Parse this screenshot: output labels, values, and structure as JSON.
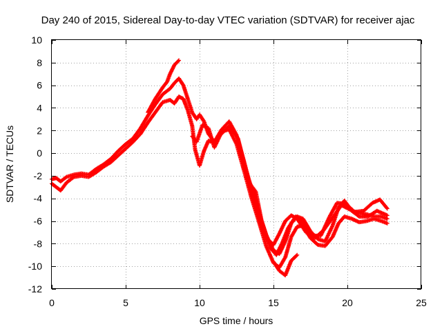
{
  "chart_data": {
    "type": "scatter",
    "title": "Day 240 of 2015, Sidereal Day-to-day VTEC variation (SDTVAR) for receiver ajac",
    "xlabel": "GPS time / hours",
    "ylabel": "SDTVAR / TECUs",
    "xlim": [
      0,
      25
    ],
    "ylim": [
      -12,
      10
    ],
    "xticks": [
      0,
      5,
      10,
      15,
      20,
      25
    ],
    "yticks": [
      -12,
      -10,
      -8,
      -6,
      -4,
      -2,
      0,
      2,
      4,
      6,
      8,
      10
    ],
    "grid": true,
    "marker": "+",
    "color": "#ff0000",
    "series": [
      {
        "values": [
          [
            0.0,
            -2.3
          ],
          [
            0.3,
            -2.2
          ],
          [
            0.6,
            -2.5
          ],
          [
            1.0,
            -2.1
          ],
          [
            1.5,
            -1.9
          ],
          [
            2.0,
            -1.8
          ],
          [
            2.5,
            -1.9
          ],
          [
            3.0,
            -1.4
          ],
          [
            3.5,
            -1.0
          ],
          [
            4.0,
            -0.5
          ],
          [
            4.5,
            0.2
          ],
          [
            5.0,
            0.8
          ],
          [
            5.5,
            1.3
          ],
          [
            6.0,
            2.2
          ],
          [
            6.5,
            3.3
          ],
          [
            7.0,
            4.3
          ],
          [
            7.5,
            5.2
          ],
          [
            8.0,
            5.7
          ],
          [
            8.3,
            6.2
          ],
          [
            8.6,
            6.6
          ],
          [
            8.9,
            6.0
          ],
          [
            9.2,
            4.8
          ],
          [
            9.5,
            3.6
          ],
          [
            9.8,
            3.0
          ],
          [
            10.0,
            3.4
          ],
          [
            10.3,
            2.8
          ],
          [
            10.6,
            1.7
          ],
          [
            11.0,
            1.0
          ],
          [
            11.5,
            2.1
          ],
          [
            12.0,
            2.8
          ],
          [
            12.5,
            1.6
          ],
          [
            13.0,
            -0.7
          ],
          [
            13.5,
            -3.2
          ],
          [
            14.0,
            -5.2
          ],
          [
            14.5,
            -7.2
          ],
          [
            15.0,
            -8.6
          ],
          [
            15.4,
            -8.9
          ],
          [
            15.8,
            -7.8
          ],
          [
            16.2,
            -6.2
          ],
          [
            16.6,
            -5.6
          ],
          [
            17.0,
            -5.8
          ],
          [
            17.5,
            -6.9
          ],
          [
            18.0,
            -7.6
          ],
          [
            18.5,
            -7.8
          ],
          [
            19.0,
            -6.4
          ],
          [
            19.4,
            -4.8
          ],
          [
            19.8,
            -4.2
          ],
          [
            20.3,
            -5.1
          ],
          [
            20.8,
            -5.3
          ],
          [
            21.3,
            -5.4
          ],
          [
            21.8,
            -5.6
          ],
          [
            22.3,
            -5.6
          ],
          [
            22.7,
            -5.8
          ]
        ]
      },
      {
        "values": [
          [
            0.0,
            -2.7
          ],
          [
            0.3,
            -3.0
          ],
          [
            0.6,
            -3.3
          ],
          [
            1.0,
            -2.6
          ],
          [
            1.5,
            -2.1
          ],
          [
            2.0,
            -2.0
          ],
          [
            2.5,
            -2.1
          ],
          [
            3.0,
            -1.7
          ],
          [
            3.5,
            -1.2
          ],
          [
            4.0,
            -0.8
          ],
          [
            4.5,
            -0.2
          ],
          [
            5.0,
            0.4
          ],
          [
            5.5,
            1.0
          ],
          [
            6.0,
            1.7
          ],
          [
            6.5,
            2.7
          ],
          [
            7.0,
            3.6
          ],
          [
            7.5,
            4.5
          ],
          [
            8.0,
            4.7
          ],
          [
            8.3,
            4.4
          ],
          [
            8.6,
            5.0
          ],
          [
            8.9,
            4.8
          ],
          [
            9.2,
            3.8
          ],
          [
            9.5,
            2.4
          ],
          [
            9.7,
            0.3
          ],
          [
            10.0,
            -1.1
          ],
          [
            10.3,
            0.2
          ],
          [
            10.6,
            1.1
          ],
          [
            11.0,
            0.9
          ],
          [
            11.5,
            1.9
          ],
          [
            12.0,
            2.1
          ],
          [
            12.5,
            0.8
          ],
          [
            13.0,
            -1.5
          ],
          [
            13.5,
            -3.9
          ],
          [
            14.0,
            -6.0
          ],
          [
            14.5,
            -8.2
          ],
          [
            15.0,
            -9.7
          ],
          [
            15.4,
            -10.1
          ],
          [
            15.8,
            -9.2
          ],
          [
            16.2,
            -7.4
          ],
          [
            16.6,
            -6.5
          ],
          [
            17.0,
            -6.4
          ],
          [
            17.5,
            -7.5
          ],
          [
            18.0,
            -8.1
          ],
          [
            18.5,
            -8.2
          ],
          [
            19.0,
            -7.4
          ],
          [
            19.4,
            -6.2
          ],
          [
            19.8,
            -5.6
          ],
          [
            20.3,
            -5.8
          ],
          [
            20.8,
            -6.1
          ],
          [
            21.3,
            -6.0
          ],
          [
            21.8,
            -5.8
          ],
          [
            22.3,
            -6.0
          ],
          [
            22.7,
            -6.2
          ]
        ]
      },
      {
        "values": [
          [
            6.5,
            3.6
          ],
          [
            7.0,
            4.8
          ],
          [
            7.5,
            5.8
          ],
          [
            7.8,
            6.3
          ],
          [
            8.0,
            7.0
          ],
          [
            8.3,
            7.8
          ],
          [
            8.6,
            8.2
          ]
        ]
      },
      {
        "values": [
          [
            9.5,
            1.5
          ],
          [
            9.8,
            1.0
          ],
          [
            10.2,
            2.5
          ],
          [
            10.6,
            2.2
          ],
          [
            11.0,
            0.5
          ],
          [
            11.4,
            1.6
          ],
          [
            12.0,
            2.4
          ],
          [
            12.6,
            1.3
          ],
          [
            13.2,
            -1.8
          ],
          [
            13.8,
            -4.2
          ],
          [
            14.3,
            -6.6
          ],
          [
            14.8,
            -8.4
          ],
          [
            15.2,
            -9.0
          ],
          [
            15.6,
            -7.9
          ],
          [
            16.0,
            -6.6
          ],
          [
            16.5,
            -5.6
          ],
          [
            17.0,
            -6.1
          ],
          [
            17.6,
            -7.3
          ],
          [
            18.2,
            -7.3
          ],
          [
            18.8,
            -5.6
          ],
          [
            19.3,
            -4.4
          ],
          [
            19.9,
            -4.5
          ],
          [
            20.5,
            -5.2
          ],
          [
            21.1,
            -5.1
          ],
          [
            21.7,
            -4.4
          ],
          [
            22.2,
            -4.1
          ],
          [
            22.7,
            -4.9
          ]
        ]
      },
      {
        "values": [
          [
            15.0,
            -9.6
          ],
          [
            15.4,
            -10.4
          ],
          [
            15.8,
            -10.8
          ],
          [
            16.2,
            -9.5
          ],
          [
            16.6,
            -9.0
          ]
        ]
      },
      {
        "values": [
          [
            13.4,
            -2.7
          ],
          [
            13.8,
            -3.4
          ],
          [
            14.2,
            -6.0
          ],
          [
            14.6,
            -7.6
          ],
          [
            15.0,
            -8.1
          ],
          [
            15.4,
            -7.1
          ],
          [
            15.8,
            -6.0
          ],
          [
            16.2,
            -5.5
          ],
          [
            16.6,
            -5.8
          ],
          [
            17.2,
            -7.0
          ],
          [
            17.8,
            -7.5
          ],
          [
            18.4,
            -6.8
          ],
          [
            19.0,
            -5.7
          ],
          [
            19.6,
            -4.6
          ],
          [
            20.2,
            -5.0
          ],
          [
            20.8,
            -5.6
          ],
          [
            21.4,
            -5.6
          ],
          [
            22.0,
            -5.1
          ],
          [
            22.7,
            -5.5
          ]
        ]
      }
    ]
  }
}
